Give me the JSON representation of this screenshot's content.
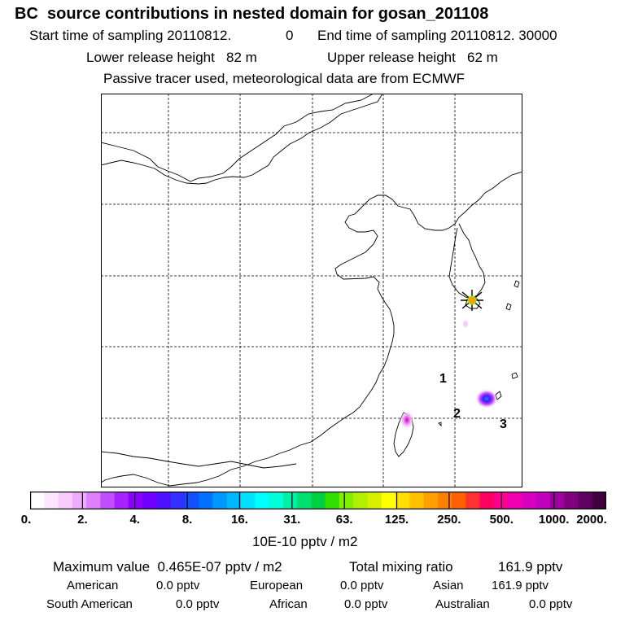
{
  "chart_data": {
    "type": "heatmap",
    "title": "BC  source contributions in nested domain for gosan_201108",
    "header": {
      "start_label": "Start time of sampling 20110812.",
      "start_hour": "0",
      "end_label": "End time of sampling 20110812. 30000",
      "lower_release": "Lower release height   82 m",
      "upper_release": "Upper release height   62 m",
      "note": "Passive tracer used, meteorological data are from ECMWF"
    },
    "site_labels": [
      "1",
      "2",
      "3"
    ],
    "colorbar": {
      "ticks": [
        "0.",
        "2.",
        "4.",
        "8.",
        "16.",
        "31.",
        "63.",
        "125.",
        "250.",
        "500.",
        "1000.",
        "2000."
      ],
      "colors": [
        "#ffffff",
        "#fde6ff",
        "#f8ccff",
        "#f0aaff",
        "#de7fff",
        "#c24dff",
        "#a822ff",
        "#8c00ff",
        "#6f00ff",
        "#5010ff",
        "#3030ff",
        "#1050ff",
        "#0070ff",
        "#0098ff",
        "#00b8ff",
        "#00e0ff",
        "#00ffff",
        "#00ffd8",
        "#00f0a8",
        "#00e070",
        "#00d040",
        "#30e000",
        "#80ee00",
        "#b0f000",
        "#d8f000",
        "#ffff00",
        "#ffe000",
        "#ffc000",
        "#ffa000",
        "#ff8000",
        "#ff6000",
        "#ff3030",
        "#ff0060",
        "#ff0090",
        "#f000b0",
        "#d800c0",
        "#c000c0",
        "#a000a0",
        "#800080",
        "#600060",
        "#400040"
      ],
      "unit": "10E-10 pptv / m2"
    },
    "summary": {
      "max_label": "Maximum value  0.465E-07 pptv / m2",
      "total_label": "Total mixing ratio",
      "total_value": "161.9 pptv"
    },
    "regions": [
      {
        "name": "American",
        "value": "0.0 pptv"
      },
      {
        "name": "European",
        "value": "0.0 pptv"
      },
      {
        "name": "Asian",
        "value": "161.9 pptv"
      },
      {
        "name": "South American",
        "value": "0.0 pptv"
      },
      {
        "name": "African",
        "value": "0.0 pptv"
      },
      {
        "name": "Australian",
        "value": "0.0 pptv"
      }
    ]
  }
}
